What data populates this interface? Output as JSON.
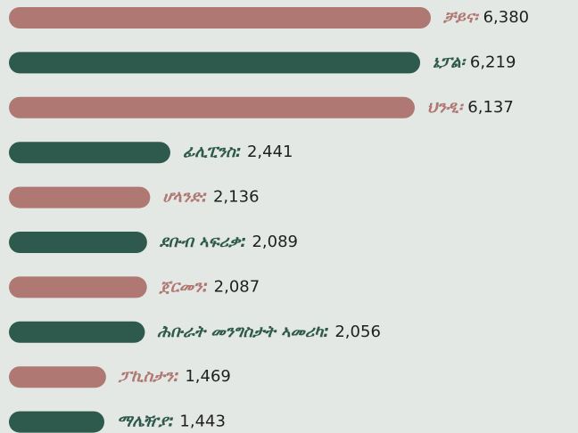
{
  "chart_data": {
    "type": "bar",
    "orientation": "horizontal",
    "categories": [
      "ቻይና፡",
      "ኔፓል፡",
      "ህንዲ፡",
      "ፊሊፒንስ:",
      "ሆላንድ:",
      "ደቡብ ኣፍሪቃ:",
      "ጀርመን:",
      "ሕቡራት መንግስታት ኣመሪካ:",
      "ፓኪስታን:",
      "ማሌዥያ:"
    ],
    "values": [
      6380,
      6219,
      6137,
      2441,
      2136,
      2089,
      2087,
      2056,
      1469,
      1443
    ],
    "value_labels": [
      "6,380",
      "6,219",
      "6,137",
      "2,441",
      "2,136",
      "2,089",
      "2,087",
      "2,056",
      "1,469",
      "1,443"
    ],
    "colors": [
      "#b07872",
      "#2d5a4c",
      "#b07872",
      "#2d5a4c",
      "#b07872",
      "#2d5a4c",
      "#b07872",
      "#2d5a4c",
      "#b07872",
      "#2d5a4c"
    ]
  }
}
